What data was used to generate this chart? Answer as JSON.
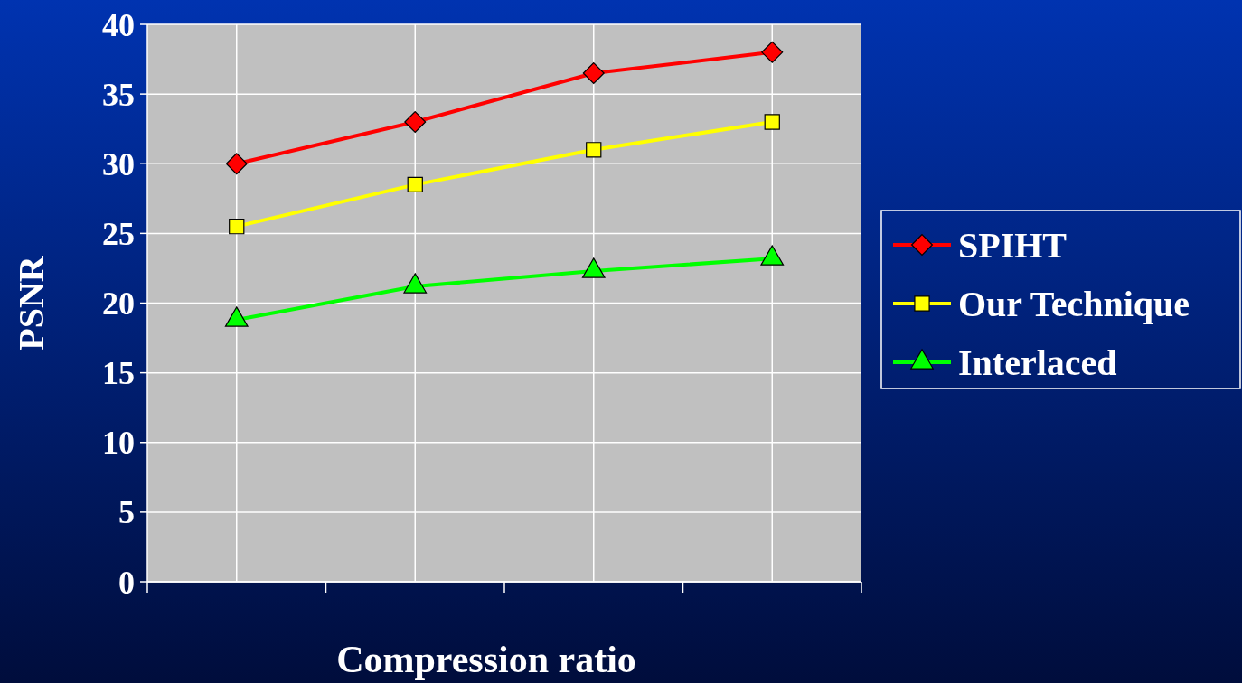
{
  "chart_data": {
    "type": "line",
    "xlabel": "Compression ratio",
    "ylabel": "PSNR",
    "categories": [
      null,
      null,
      null,
      null
    ],
    "series": [
      {
        "name": "SPIHT",
        "color": "#ff0000",
        "marker": "diamond",
        "values": [
          30,
          33,
          36.5,
          38
        ]
      },
      {
        "name": "Our Technique",
        "color": "#ffff00",
        "marker": "square",
        "values": [
          25.5,
          28.5,
          31,
          33
        ]
      },
      {
        "name": "Interlaced",
        "color": "#00ff00",
        "marker": "triangle",
        "values": [
          18.8,
          21.2,
          22.3,
          23.2
        ]
      }
    ],
    "ylim": [
      0,
      40
    ],
    "yticks": [
      0,
      5,
      10,
      15,
      20,
      25,
      30,
      35,
      40
    ],
    "grid": true,
    "legend": "right",
    "tick_labels": "y"
  }
}
